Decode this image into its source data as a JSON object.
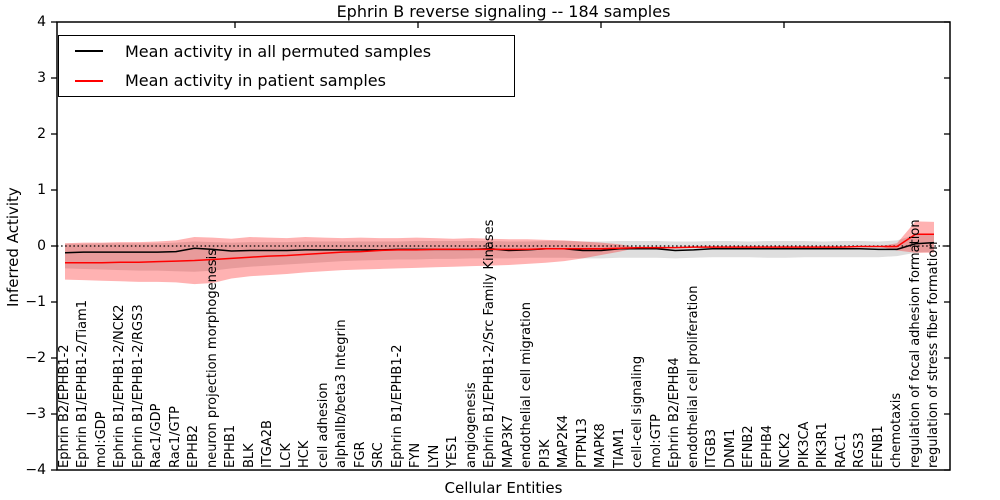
{
  "figure": {
    "title": "Ephrin B reverse signaling -- 184 samples",
    "xlabel": "Cellular Entities",
    "ylabel": "Inferred Activity"
  },
  "legend": {
    "items": [
      {
        "label": "Mean activity in all permuted samples",
        "color": "#000000"
      },
      {
        "label": "Mean activity in patient samples",
        "color": "#ff0000"
      }
    ]
  },
  "chart_data": {
    "type": "line",
    "title": "Ephrin B reverse signaling -- 184 samples",
    "xlabel": "Cellular Entities",
    "ylabel": "Inferred Activity",
    "ylim": [
      -4,
      4
    ],
    "grid": false,
    "legend_position": "upper left",
    "yticks": [
      {
        "label": "4",
        "v": 4
      },
      {
        "label": "3",
        "v": 3
      },
      {
        "label": "2",
        "v": 2
      },
      {
        "label": "1",
        "v": 1
      },
      {
        "label": "0",
        "v": 0
      },
      {
        "label": "−1",
        "v": -1
      },
      {
        "label": "−2",
        "v": -2
      },
      {
        "label": "−3",
        "v": -3
      },
      {
        "label": "−4",
        "v": -4
      }
    ],
    "reference_line": {
      "y": 0,
      "style": "dotted",
      "color": "#000000"
    },
    "categories": [
      "Ephrin B2/EPHB1-2",
      "Ephrin B1/EPHB1-2/Tiam1",
      "mol:GDP",
      "Ephrin B1/EPHB1-2/NCK2",
      "Ephrin B1/EPHB1-2/RGS3",
      "Rac1/GDP",
      "Rac1/GTP",
      "EPHB2",
      "neuron projection morphogenesis",
      "EPHB1",
      "BLK",
      "ITGA2B",
      "LCK",
      "HCK",
      "cell adhesion",
      "alphaIIb/beta3 Integrin",
      "FGR",
      "SRC",
      "Ephrin B1/EPHB1-2",
      "FYN",
      "LYN",
      "YES1",
      "angiogenesis",
      "Ephrin B1/EPHB1-2/Src Family Kinases",
      "MAP3K7",
      "endothelial cell migration",
      "PI3K",
      "MAP2K4",
      "PTPN13",
      "MAPK8",
      "TIAM1",
      "cell-cell signaling",
      "mol:GTP",
      "Ephrin B2/EPHB4",
      "endothelial cell proliferation",
      "ITGB3",
      "DNM1",
      "EFNB2",
      "EPHB4",
      "NCK2",
      "PIK3CA",
      "PIK3R1",
      "RAC1",
      "RGS3",
      "EFNB1",
      "chemotaxis",
      "regulation of focal adhesion formation",
      "regulation of stress fiber formation"
    ],
    "series": [
      {
        "name": "Mean activity in all permuted samples",
        "color": "#000000",
        "values": [
          -0.12,
          -0.11,
          -0.11,
          -0.11,
          -0.11,
          -0.11,
          -0.1,
          -0.04,
          -0.06,
          -0.09,
          -0.08,
          -0.08,
          -0.08,
          -0.07,
          -0.07,
          -0.07,
          -0.07,
          -0.07,
          -0.06,
          -0.06,
          -0.06,
          -0.06,
          -0.06,
          -0.05,
          -0.08,
          -0.07,
          -0.05,
          -0.05,
          -0.08,
          -0.08,
          -0.05,
          -0.05,
          -0.05,
          -0.08,
          -0.07,
          -0.05,
          -0.05,
          -0.05,
          -0.05,
          -0.05,
          -0.05,
          -0.05,
          -0.05,
          -0.05,
          -0.06,
          -0.06,
          0.04,
          0.06
        ]
      },
      {
        "name": "Mean activity in patient samples",
        "color": "#ff0000",
        "values": [
          -0.3,
          -0.3,
          -0.3,
          -0.29,
          -0.29,
          -0.28,
          -0.27,
          -0.26,
          -0.24,
          -0.22,
          -0.2,
          -0.18,
          -0.17,
          -0.15,
          -0.13,
          -0.11,
          -0.1,
          -0.08,
          -0.07,
          -0.07,
          -0.06,
          -0.06,
          -0.06,
          -0.06,
          -0.06,
          -0.06,
          -0.05,
          -0.05,
          -0.05,
          -0.05,
          -0.04,
          -0.03,
          -0.03,
          -0.03,
          -0.02,
          -0.02,
          -0.02,
          -0.02,
          -0.02,
          -0.02,
          -0.02,
          -0.02,
          -0.02,
          -0.01,
          -0.01,
          -0.01,
          0.21,
          0.21
        ]
      }
    ],
    "bands": [
      {
        "name": "permuted-samples-spread",
        "color": "#000000",
        "opacity": 0.13,
        "upper": [
          0.04,
          0.04,
          0.05,
          0.05,
          0.05,
          0.05,
          0.06,
          0.08,
          0.07,
          0.06,
          0.07,
          0.07,
          0.07,
          0.08,
          0.08,
          0.08,
          0.08,
          0.08,
          0.08,
          0.09,
          0.09,
          0.09,
          0.09,
          0.09,
          0.08,
          0.08,
          0.09,
          0.09,
          0.08,
          0.08,
          0.09,
          0.09,
          0.09,
          0.08,
          0.08,
          0.09,
          0.09,
          0.08,
          0.09,
          0.09,
          0.09,
          0.08,
          0.09,
          0.09,
          0.08,
          0.1,
          0.2,
          0.22
        ],
        "lower": [
          -0.4,
          -0.41,
          -0.42,
          -0.43,
          -0.44,
          -0.44,
          -0.45,
          -0.46,
          -0.44,
          -0.4,
          -0.37,
          -0.35,
          -0.33,
          -0.31,
          -0.29,
          -0.27,
          -0.26,
          -0.25,
          -0.24,
          -0.24,
          -0.23,
          -0.23,
          -0.22,
          -0.22,
          -0.22,
          -0.21,
          -0.21,
          -0.21,
          -0.22,
          -0.22,
          -0.21,
          -0.21,
          -0.21,
          -0.22,
          -0.21,
          -0.2,
          -0.2,
          -0.2,
          -0.21,
          -0.21,
          -0.2,
          -0.2,
          -0.2,
          -0.2,
          -0.2,
          -0.18,
          -0.12,
          -0.1
        ]
      },
      {
        "name": "patient-samples-spread",
        "color": "#ff0000",
        "opacity": 0.3,
        "upper": [
          0.05,
          0.06,
          0.06,
          0.07,
          0.07,
          0.08,
          0.1,
          0.16,
          0.15,
          0.13,
          0.16,
          0.15,
          0.14,
          0.16,
          0.15,
          0.14,
          0.15,
          0.14,
          0.14,
          0.15,
          0.14,
          0.13,
          0.14,
          0.13,
          0.12,
          0.12,
          0.11,
          0.1,
          0.08,
          0.06,
          0.03,
          -0.03,
          -0.03,
          -0.03,
          -0.02,
          -0.02,
          -0.02,
          -0.02,
          -0.02,
          -0.02,
          -0.02,
          -0.02,
          -0.02,
          -0.01,
          -0.01,
          0.05,
          0.44,
          0.43
        ],
        "lower": [
          -0.6,
          -0.61,
          -0.62,
          -0.63,
          -0.64,
          -0.64,
          -0.65,
          -0.68,
          -0.66,
          -0.58,
          -0.54,
          -0.52,
          -0.5,
          -0.47,
          -0.45,
          -0.43,
          -0.42,
          -0.41,
          -0.4,
          -0.39,
          -0.38,
          -0.37,
          -0.36,
          -0.35,
          -0.34,
          -0.32,
          -0.3,
          -0.27,
          -0.22,
          -0.16,
          -0.1,
          -0.03,
          -0.03,
          -0.03,
          -0.02,
          -0.02,
          -0.02,
          -0.02,
          -0.02,
          -0.02,
          -0.02,
          -0.02,
          -0.02,
          -0.01,
          -0.01,
          -0.08,
          -0.12,
          -0.12
        ]
      }
    ]
  }
}
